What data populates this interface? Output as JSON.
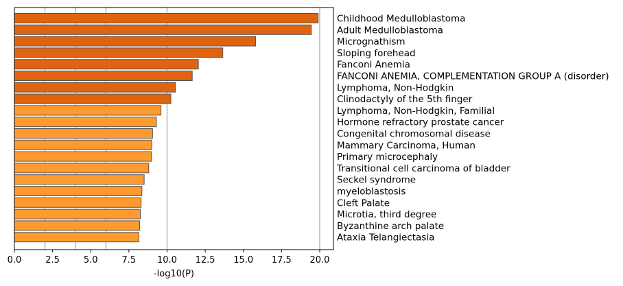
{
  "chart_data": {
    "type": "bar",
    "orientation": "horizontal",
    "xlabel": "-log10(P)",
    "ylabel": "",
    "title": "",
    "xlim": [
      0,
      20.9
    ],
    "x_ticks": [
      "0.0",
      "2.5",
      "5.0",
      "7.5",
      "10.0",
      "12.5",
      "15.0",
      "17.5",
      "20.0"
    ],
    "x_tick_values": [
      0,
      2.5,
      5,
      7.5,
      10,
      12.5,
      15,
      17.5,
      20
    ],
    "vertical_gridlines_at": [
      2,
      4,
      6,
      10,
      20
    ],
    "categories": [
      "Childhood Medulloblastoma",
      "Adult Medulloblastoma",
      "Micrognathism",
      "Sloping forehead",
      "Fanconi Anemia",
      "FANCONI ANEMIA, COMPLEMENTATION GROUP A (disorder)",
      "Lymphoma, Non-Hodgkin",
      "Clinodactyly of the 5th finger",
      "Lymphoma, Non-Hodgkin, Familial",
      "Hormone refractory prostate cancer",
      "Congenital chromosomal disease",
      "Mammary Carcinoma, Human",
      "Primary microcephaly",
      "Transitional cell carcinoma of bladder",
      "Seckel syndrome",
      "myeloblastosis",
      "Cleft Palate",
      "Microtia, third degree",
      "Byzanthine arch palate",
      "Ataxia Telangiectasia"
    ],
    "values": [
      19.9,
      19.45,
      15.8,
      13.65,
      12.05,
      11.65,
      10.55,
      10.25,
      9.6,
      9.3,
      9.05,
      9.0,
      8.98,
      8.8,
      8.5,
      8.35,
      8.3,
      8.25,
      8.2,
      8.15
    ],
    "colors": {
      "dark": "#e06410",
      "light": "#ff9a2e",
      "edge": "#555555",
      "grid": "#b0b0b0"
    },
    "dark_count": 8
  }
}
